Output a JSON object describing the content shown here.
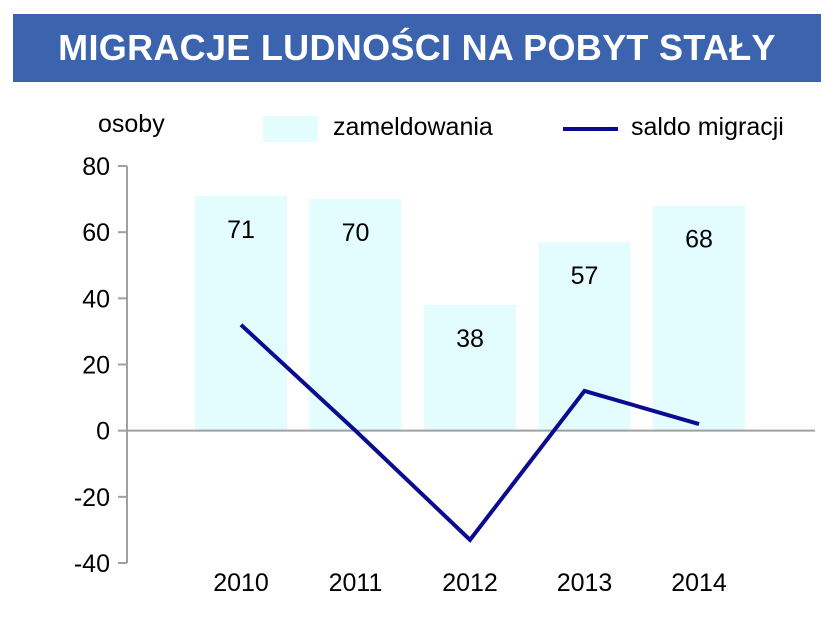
{
  "title": "MIGRACJE LUDNOŚCI NA POBYT STAŁY",
  "chart_data": {
    "type": "bar",
    "title": "MIGRACJE LUDNOŚCI NA POBYT STAŁY",
    "ylabel": "osoby",
    "xlabel": "",
    "categories": [
      "2010",
      "2011",
      "2012",
      "2013",
      "2014"
    ],
    "ylim": [
      -40,
      80
    ],
    "yticks": [
      80,
      60,
      40,
      20,
      0,
      -20,
      -40
    ],
    "ytick_labels": [
      "80",
      "60",
      "40",
      "20",
      "0",
      "-20",
      "-40"
    ],
    "grid": false,
    "legend_position": "top",
    "series": [
      {
        "name": "zameldowania",
        "type": "bar",
        "values": [
          71,
          70,
          38,
          57,
          68
        ],
        "value_labels": [
          "71",
          "70",
          "38",
          "57",
          "68"
        ],
        "color": "#e3fdfe"
      },
      {
        "name": "saldo migracji",
        "type": "line",
        "values": [
          32,
          0,
          -33,
          12,
          2
        ],
        "color": "#0b0b8f"
      }
    ],
    "axis_color": "#a0a0a0"
  }
}
